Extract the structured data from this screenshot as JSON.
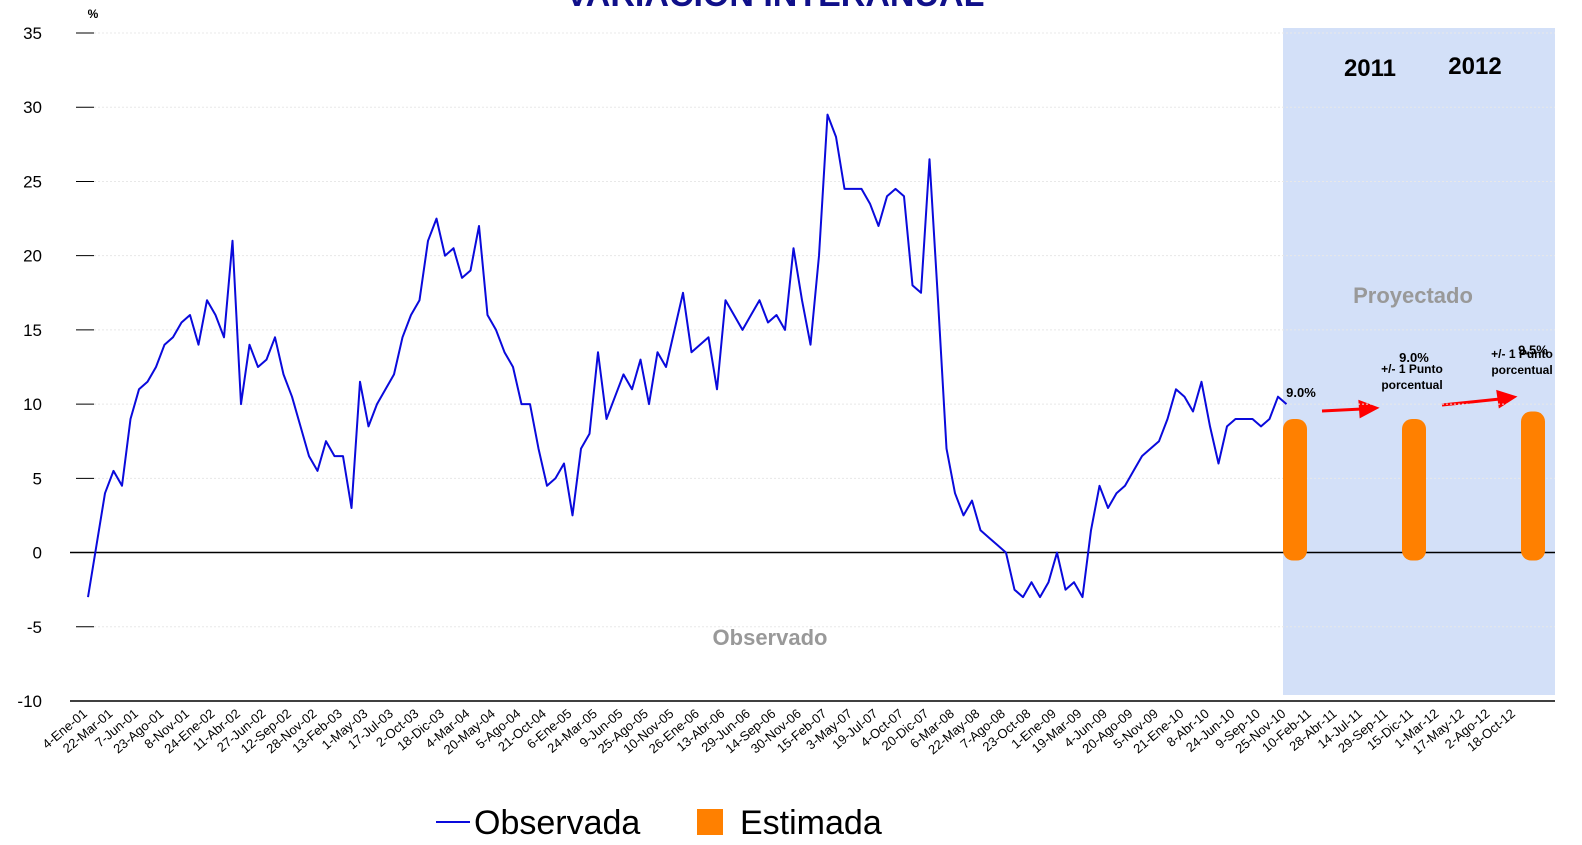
{
  "chart_data": {
    "type": "line",
    "title": "VARIACION INTERANUAL",
    "y_label": "%",
    "categories": [
      "4-Ene-01",
      null,
      null,
      "22-Mar-01",
      null,
      null,
      "7-Jun-01",
      null,
      null,
      "23-Ago-01",
      null,
      null,
      "8-Nov-01",
      null,
      null,
      "24-Ene-02",
      null,
      null,
      "11-Abr-02",
      null,
      null,
      "27-Jun-02",
      null,
      null,
      "12-Sep-02",
      null,
      null,
      "28-Nov-02",
      null,
      null,
      "13-Feb-03",
      null,
      null,
      "1-May-03",
      null,
      null,
      "17-Jul-03",
      null,
      null,
      "2-Oct-03",
      null,
      null,
      "18-Dic-03",
      null,
      null,
      "4-Mar-04",
      null,
      null,
      "20-May-04",
      null,
      null,
      "5-Ago-04",
      null,
      null,
      "21-Oct-04",
      null,
      null,
      "6-Ene-05",
      null,
      null,
      "24-Mar-05",
      null,
      null,
      "9-Jun-05",
      null,
      null,
      "25-Ago-05",
      null,
      null,
      "10-Nov-05",
      null,
      null,
      "26-Ene-06",
      null,
      null,
      "13-Abr-06",
      null,
      null,
      "29-Jun-06",
      null,
      null,
      "14-Sep-06",
      null,
      null,
      "30-Nov-06",
      null,
      null,
      "15-Feb-07",
      null,
      null,
      "3-May-07",
      null,
      null,
      "19-Jul-07",
      null,
      null,
      "4-Oct-07",
      null,
      null,
      "20-Dic-07",
      null,
      null,
      "6-Mar-08",
      null,
      null,
      "22-May-08",
      null,
      null,
      "7-Ago-08",
      null,
      null,
      "23-Oct-08",
      null,
      null,
      "1-Ene-09",
      null,
      null,
      "19-Mar-09",
      null,
      null,
      "4-Jun-09",
      null,
      null,
      "20-Ago-09",
      null,
      null,
      "5-Nov-09",
      null,
      null,
      "21-Ene-10",
      null,
      null,
      "8-Abr-10",
      null,
      null,
      "24-Jun-10",
      null,
      null,
      "9-Sep-10",
      null,
      null,
      "25-Nov-10",
      null,
      null,
      "10-Feb-11",
      null,
      null,
      "28-Abr-11",
      null,
      null,
      "14-Jul-11",
      null,
      null,
      "29-Sep-11",
      null,
      null,
      "15-Dic-11",
      null,
      null,
      "1-Mar-12",
      null,
      null,
      "17-May-12",
      null,
      null,
      "2-Ago-12",
      null,
      null,
      "18-Oct-12",
      null,
      null
    ],
    "series": [
      {
        "name": "Observada",
        "color": "#0a0adc",
        "values": [
          -3,
          0.5,
          4,
          5.5,
          4.5,
          9,
          11,
          11.5,
          12.5,
          14,
          14.5,
          15.5,
          16,
          14,
          17,
          16,
          14.5,
          21,
          10,
          14,
          12.5,
          13,
          14.5,
          12,
          10.5,
          8.5,
          6.5,
          5.5,
          7.5,
          6.5,
          6.5,
          3,
          11.5,
          8.5,
          10,
          11,
          12,
          14.5,
          16,
          17,
          21,
          22.5,
          20,
          20.5,
          18.5,
          19,
          22,
          16,
          15,
          13.5,
          12.5,
          10,
          10,
          7,
          4.5,
          5,
          6,
          2.5,
          7,
          8,
          13.5,
          9,
          10.5,
          12,
          11,
          13,
          10,
          13.5,
          12.5,
          15,
          17.5,
          13.5,
          14,
          14.5,
          11,
          17,
          16,
          15,
          16,
          17,
          15.5,
          16,
          15,
          20.5,
          17,
          14,
          20,
          29.5,
          28,
          24.5,
          24.5,
          24.5,
          23.5,
          22,
          24,
          24.5,
          24,
          18,
          17.5,
          26.5,
          17,
          7,
          4,
          2.5,
          3.5,
          1.5,
          1,
          0.5,
          0,
          -2.5,
          -3,
          -2,
          -3,
          -2,
          0,
          -2.5,
          -2,
          -3,
          1.5,
          4.5,
          3,
          4,
          4.5,
          5.5,
          6.5,
          7,
          7.5,
          9,
          11,
          10.5,
          9.5,
          11.5,
          8.5,
          6,
          8.5,
          9,
          9,
          9,
          8.5,
          9,
          10.5,
          10,
          null,
          null,
          null,
          null,
          null,
          null,
          null,
          null,
          null,
          null,
          null,
          null,
          null,
          null,
          null,
          null,
          null,
          null,
          null,
          null,
          null,
          null,
          null,
          null,
          null,
          null,
          null,
          null,
          null
        ]
      },
      {
        "name": "Estimada",
        "color": "#ff8000",
        "values": [
          null,
          null,
          null,
          null,
          null,
          null,
          null,
          null,
          null,
          null,
          null,
          null,
          null,
          null,
          null,
          null,
          null,
          null,
          null,
          null,
          null,
          null,
          null,
          null,
          null,
          null,
          null,
          null,
          null,
          null,
          null,
          null,
          null,
          null,
          null,
          null,
          null,
          null,
          null,
          null,
          null,
          null,
          null,
          null,
          null,
          null,
          null,
          null,
          null,
          null,
          null,
          null,
          null,
          null,
          null,
          null,
          null,
          null,
          null,
          null,
          null,
          null,
          null,
          null,
          null,
          null,
          null,
          null,
          null,
          null,
          null,
          null,
          null,
          null,
          null,
          null,
          null,
          null,
          null,
          null,
          null,
          null,
          null,
          null,
          null,
          null,
          null,
          null,
          null,
          null,
          null,
          null,
          null,
          null,
          null,
          null,
          null,
          null,
          null,
          null,
          null,
          null,
          null,
          null,
          null,
          null,
          null,
          null,
          null,
          null,
          null,
          null,
          null,
          null,
          null,
          null,
          null,
          null,
          null,
          null,
          null,
          null,
          null,
          null,
          null,
          null,
          null,
          null,
          null,
          null,
          null,
          null,
          null,
          null,
          null,
          null,
          null,
          null,
          null,
          null,
          null,
          null,
          9.0,
          null,
          null,
          null,
          null,
          null,
          null,
          null,
          null,
          null,
          null,
          null,
          null,
          null,
          9.0,
          null,
          null,
          null,
          null,
          null,
          null,
          null,
          null,
          null,
          null,
          null,
          null,
          null,
          9.5
        ],
        "value_labels": [
          null,
          null,
          null,
          null,
          null,
          null,
          null,
          null,
          null,
          null,
          null,
          null,
          null,
          null,
          null,
          null,
          null,
          null,
          null,
          null,
          null,
          null,
          null,
          null,
          null,
          null,
          null,
          null,
          null,
          null,
          null,
          null,
          null,
          null,
          null,
          null,
          null,
          null,
          null,
          null,
          null,
          null,
          null,
          null,
          null,
          null,
          null,
          null,
          null,
          null,
          null,
          null,
          null,
          null,
          null,
          null,
          null,
          null,
          null,
          null,
          null,
          null,
          null,
          null,
          null,
          null,
          null,
          null,
          null,
          null,
          null,
          null,
          null,
          null,
          null,
          null,
          null,
          null,
          null,
          null,
          null,
          null,
          null,
          null,
          null,
          null,
          null,
          null,
          null,
          null,
          null,
          null,
          null,
          null,
          null,
          null,
          null,
          null,
          null,
          null,
          null,
          null,
          null,
          null,
          null,
          null,
          null,
          null,
          null,
          null,
          null,
          null,
          null,
          null,
          null,
          null,
          null,
          null,
          null,
          null,
          null,
          null,
          null,
          null,
          null,
          null,
          null,
          null,
          null,
          null,
          null,
          null,
          null,
          null,
          null,
          null,
          null,
          null,
          null,
          null,
          null,
          null,
          "9.0%",
          null,
          null,
          null,
          null,
          null,
          null,
          null,
          null,
          null,
          null,
          null,
          null,
          null,
          "9.0%",
          null,
          null,
          null,
          null,
          null,
          null,
          null,
          null,
          null,
          null,
          null,
          null,
          null,
          "9.5%"
        ]
      }
    ],
    "ylim": [
      -10,
      35
    ],
    "yticks": [
      -10,
      -5,
      0,
      5,
      10,
      15,
      20,
      25,
      30,
      35
    ],
    "zero_line": true,
    "region_labels": {
      "observed": "Observado",
      "projected": "Proyectado"
    },
    "years": [
      "2011",
      "2012"
    ],
    "note_lines": [
      "+/- 1 Punto",
      "porcentual"
    ],
    "shade_color": "#d3e0f8"
  }
}
